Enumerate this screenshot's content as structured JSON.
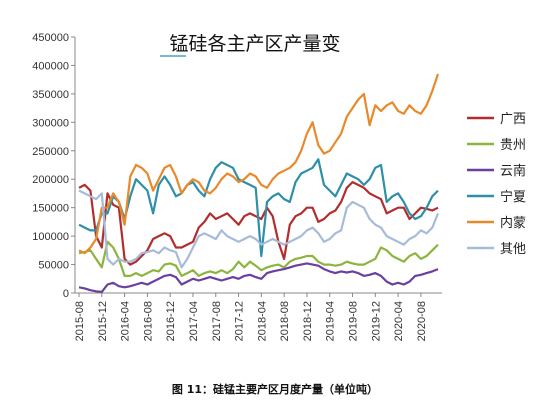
{
  "caption": "图 11：硅锰主要产区月度产量（单位吨）",
  "chart_data": {
    "type": "line",
    "title": "锰硅各主产区产量变",
    "xlabel": "",
    "ylabel": "",
    "ylim": [
      0,
      450000
    ],
    "yticks": [
      0,
      50000,
      100000,
      150000,
      200000,
      250000,
      300000,
      350000,
      400000,
      450000
    ],
    "ytick_labels": [
      "0",
      "50000",
      "100000",
      "150000",
      "200000",
      "250000",
      "300000",
      "350000",
      "400000",
      "450000"
    ],
    "x_start": "2015-08",
    "x_end": "2020-11",
    "xtick_labels": [
      "2015-08",
      "2015-12",
      "2016-04",
      "2016-08",
      "2016-12",
      "2017-04",
      "2017-08",
      "2017-12",
      "2018-04",
      "2018-08",
      "2018-12",
      "2019-04",
      "2019-08",
      "2019-12",
      "2020-04",
      "2020-08"
    ],
    "grid": false,
    "legend_position": "right",
    "series": [
      {
        "name": "广西",
        "color": "#B22D2D",
        "values": [
          185000,
          190000,
          180000,
          100000,
          80000,
          175000,
          155000,
          150000,
          60000,
          50000,
          55000,
          65000,
          75000,
          95000,
          100000,
          105000,
          100000,
          80000,
          80000,
          85000,
          90000,
          115000,
          125000,
          140000,
          130000,
          135000,
          140000,
          130000,
          120000,
          135000,
          140000,
          135000,
          130000,
          150000,
          135000,
          90000,
          60000,
          120000,
          135000,
          140000,
          150000,
          150000,
          125000,
          130000,
          140000,
          145000,
          160000,
          185000,
          195000,
          190000,
          185000,
          175000,
          170000,
          165000,
          140000,
          145000,
          150000,
          150000,
          130000,
          140000,
          150000,
          148000,
          145000,
          150000
        ]
      },
      {
        "name": "贵州",
        "color": "#8DB43E",
        "values": [
          70000,
          72000,
          75000,
          60000,
          45000,
          90000,
          80000,
          60000,
          30000,
          30000,
          35000,
          30000,
          35000,
          40000,
          38000,
          50000,
          52000,
          48000,
          30000,
          35000,
          40000,
          30000,
          35000,
          38000,
          35000,
          40000,
          35000,
          42000,
          55000,
          45000,
          55000,
          48000,
          40000,
          45000,
          48000,
          50000,
          45000,
          55000,
          60000,
          62000,
          65000,
          65000,
          55000,
          50000,
          50000,
          48000,
          50000,
          55000,
          52000,
          50000,
          50000,
          55000,
          60000,
          80000,
          75000,
          65000,
          60000,
          55000,
          65000,
          70000,
          60000,
          65000,
          75000,
          85000
        ]
      },
      {
        "name": "云南",
        "color": "#6B3FA0",
        "values": [
          10000,
          8000,
          5000,
          3000,
          2000,
          15000,
          18000,
          12000,
          10000,
          12000,
          15000,
          18000,
          15000,
          20000,
          25000,
          30000,
          32000,
          28000,
          15000,
          20000,
          25000,
          22000,
          25000,
          28000,
          25000,
          22000,
          25000,
          28000,
          25000,
          30000,
          32000,
          28000,
          25000,
          35000,
          38000,
          40000,
          42000,
          45000,
          48000,
          50000,
          52000,
          50000,
          48000,
          42000,
          38000,
          35000,
          38000,
          36000,
          38000,
          35000,
          30000,
          32000,
          35000,
          30000,
          20000,
          15000,
          18000,
          15000,
          20000,
          30000,
          32000,
          35000,
          38000,
          42000
        ]
      },
      {
        "name": "宁夏",
        "color": "#2E8FA8",
        "values": [
          120000,
          115000,
          110000,
          110000,
          140000,
          140000,
          170000,
          160000,
          130000,
          170000,
          200000,
          190000,
          180000,
          140000,
          190000,
          205000,
          190000,
          170000,
          175000,
          190000,
          195000,
          180000,
          170000,
          200000,
          220000,
          230000,
          225000,
          220000,
          200000,
          195000,
          190000,
          185000,
          65000,
          160000,
          170000,
          175000,
          165000,
          160000,
          195000,
          210000,
          215000,
          220000,
          235000,
          190000,
          180000,
          170000,
          190000,
          210000,
          205000,
          200000,
          190000,
          200000,
          220000,
          225000,
          160000,
          170000,
          175000,
          160000,
          140000,
          130000,
          135000,
          150000,
          170000,
          180000
        ]
      },
      {
        "name": "内蒙",
        "color": "#E8892A",
        "values": [
          75000,
          70000,
          80000,
          95000,
          150000,
          150000,
          175000,
          160000,
          120000,
          205000,
          225000,
          220000,
          210000,
          180000,
          200000,
          220000,
          225000,
          205000,
          175000,
          190000,
          200000,
          195000,
          180000,
          175000,
          185000,
          200000,
          210000,
          205000,
          195000,
          200000,
          210000,
          205000,
          190000,
          185000,
          200000,
          210000,
          215000,
          220000,
          230000,
          250000,
          280000,
          300000,
          260000,
          245000,
          250000,
          265000,
          280000,
          310000,
          325000,
          340000,
          350000,
          295000,
          330000,
          320000,
          330000,
          335000,
          320000,
          315000,
          330000,
          320000,
          315000,
          330000,
          355000,
          385000
        ]
      },
      {
        "name": "其他",
        "color": "#A6BBD8",
        "values": [
          180000,
          175000,
          170000,
          165000,
          175000,
          60000,
          50000,
          60000,
          55000,
          55000,
          60000,
          70000,
          72000,
          75000,
          70000,
          80000,
          75000,
          72000,
          45000,
          60000,
          80000,
          100000,
          105000,
          100000,
          95000,
          110000,
          100000,
          95000,
          90000,
          95000,
          100000,
          95000,
          85000,
          90000,
          95000,
          90000,
          85000,
          90000,
          95000,
          100000,
          110000,
          115000,
          105000,
          90000,
          95000,
          105000,
          110000,
          150000,
          160000,
          155000,
          150000,
          130000,
          120000,
          115000,
          100000,
          95000,
          90000,
          85000,
          95000,
          100000,
          110000,
          105000,
          115000,
          140000
        ]
      }
    ]
  }
}
